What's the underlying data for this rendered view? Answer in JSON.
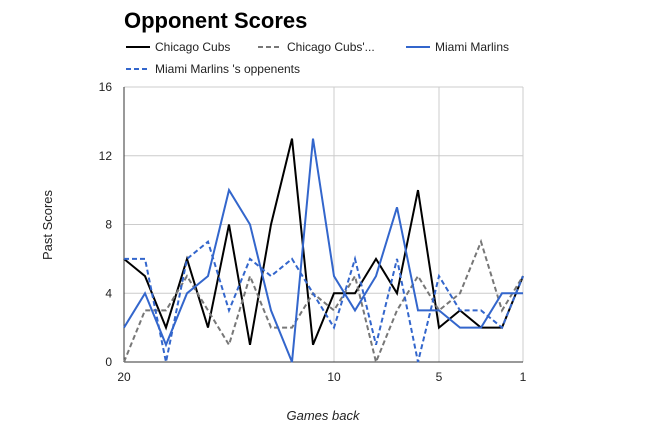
{
  "chart_data": {
    "type": "line",
    "title": "Opponent Scores",
    "xlabel": "Games back",
    "ylabel": "Past Scores",
    "x": [
      20,
      19,
      18,
      17,
      16,
      15,
      14,
      13,
      12,
      11,
      10,
      9,
      8,
      7,
      6,
      5,
      4,
      3,
      2,
      1
    ],
    "xlim": [
      20,
      1
    ],
    "ylim": [
      0,
      16
    ],
    "x_ticks": [
      20,
      10,
      5,
      1
    ],
    "y_ticks": [
      0,
      4,
      8,
      12,
      16
    ],
    "grid": true,
    "legend_position": "top",
    "series": [
      {
        "name": "Chicago Cubs",
        "color": "#000000",
        "dash": "solid",
        "values": [
          6,
          5,
          2,
          6,
          2,
          8,
          1,
          8,
          13,
          1,
          4,
          4,
          6,
          4,
          10,
          2,
          3,
          2,
          2,
          5
        ]
      },
      {
        "name": "Chicago Cubs'...",
        "color": "#777777",
        "dash": "dashed",
        "values": [
          0,
          3,
          3,
          5,
          3,
          1,
          5,
          2,
          2,
          4,
          3,
          5,
          0,
          3,
          5,
          3,
          4,
          7,
          3,
          5
        ]
      },
      {
        "name": "Miami Marlins",
        "color": "#3366cc",
        "dash": "solid",
        "values": [
          2,
          4,
          1,
          4,
          5,
          10,
          8,
          3,
          0,
          13,
          5,
          3,
          5,
          9,
          3,
          3,
          2,
          2,
          4,
          4
        ]
      },
      {
        "name": "Miami Marlins 's oppenents",
        "color": "#3366cc",
        "dash": "dashed",
        "values": [
          6,
          6,
          0,
          6,
          7,
          3,
          6,
          5,
          6,
          4,
          2,
          6,
          1,
          6,
          0,
          5,
          3,
          3,
          2,
          5
        ]
      }
    ]
  }
}
